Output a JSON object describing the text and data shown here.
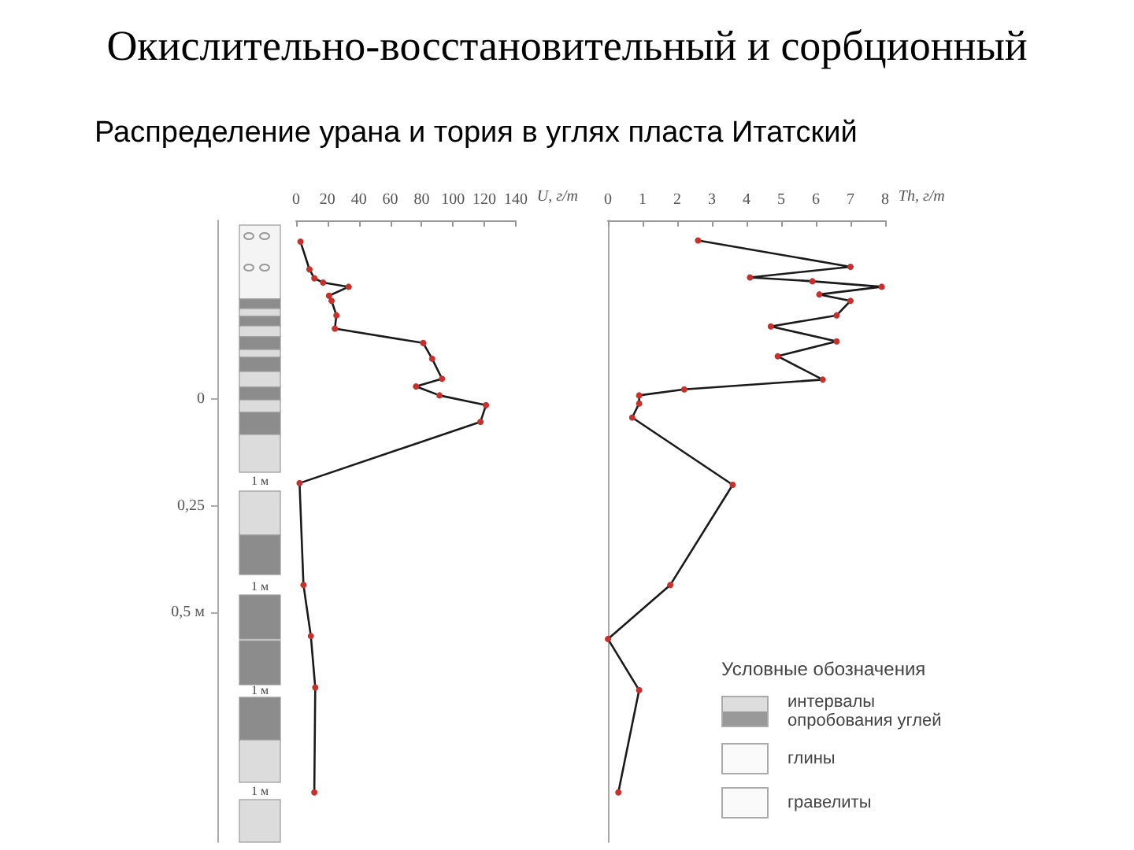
{
  "chart_data": [
    {
      "type": "line",
      "title": "Окислительно-восстановительный и сорбционный",
      "subtitle": "Распределение урана и тория в углях пласта Итатский",
      "xlabel": "U, г/т",
      "series": [
        {
          "color": "#1a1a1a",
          "x": [
            2.8,
            8.5,
            11.6,
            17.2,
            33.5,
            21,
            22.6,
            25.7,
            24.7,
            81,
            86.7,
            93,
            76.4,
            91.4,
            121,
            117.5,
            2.2,
            4.7,
            9.4,
            12.2,
            11.6
          ],
          "values": [
            -0.37,
            -0.305,
            -0.284,
            -0.274,
            -0.264,
            -0.243,
            -0.231,
            -0.197,
            -0.166,
            -0.132,
            -0.095,
            -0.048,
            -0.03,
            -0.009,
            0.014,
            0.053,
            0.197,
            0.436,
            0.556,
            0.677,
            0.923
          ]
        }
      ],
      "xlim": [
        0,
        140
      ],
      "xticks": [
        0,
        20,
        40,
        60,
        80,
        100,
        120,
        140
      ],
      "ylim": [
        1.04,
        -0.42
      ],
      "yticks": [
        {
          "value": 0,
          "label": "0"
        },
        {
          "value": 0.25,
          "label": "0,25"
        },
        {
          "value": 0.5,
          "label": "0,5 м"
        }
      ],
      "marker": "circle",
      "line_style": "solid",
      "grid": false,
      "annotations": [
        "Условные обозначения",
        "интервалы опробования углей",
        "глины",
        "гравелиты",
        "1 м",
        "1 м",
        "1 м",
        "1 м"
      ]
    },
    {
      "type": "line",
      "xlabel": "Th, г/т",
      "series": [
        {
          "color": "#1a1a1a",
          "x": [
            2.6,
            7.0,
            4.1,
            5.9,
            7.9,
            6.1,
            7.0,
            6.6,
            4.7,
            6.6,
            4.9,
            6.2,
            2.2,
            0.9,
            0.9,
            0.7,
            3.6,
            1.8,
            0.0,
            0.9,
            0.3
          ],
          "values": [
            -0.373,
            -0.311,
            -0.286,
            -0.277,
            -0.264,
            -0.246,
            -0.231,
            -0.197,
            -0.171,
            -0.136,
            -0.101,
            -0.046,
            -0.023,
            -0.009,
            0.01,
            0.043,
            0.201,
            0.436,
            0.563,
            0.683,
            0.923
          ]
        }
      ],
      "xlim": [
        0,
        8
      ],
      "xticks": [
        0,
        1,
        2,
        3,
        4,
        5,
        6,
        7,
        8
      ],
      "ylim": [
        1.04,
        -0.42
      ],
      "tick_labels": "x",
      "marker": "circle",
      "line_style": "solid",
      "grid": false
    }
  ]
}
